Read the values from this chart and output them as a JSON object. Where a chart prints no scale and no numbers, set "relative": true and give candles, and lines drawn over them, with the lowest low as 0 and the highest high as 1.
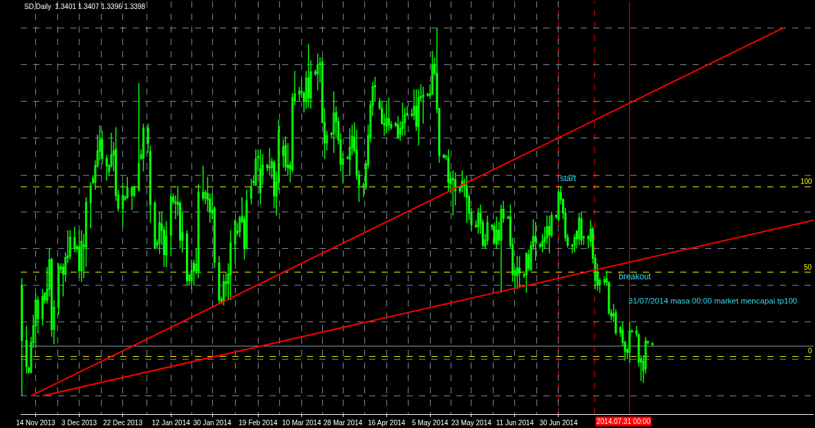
{
  "chart_data": {
    "type": "candlestick",
    "title": "SD,Daily  1.3401 1.3407 1.3396 1.3398",
    "relative": true,
    "grid": true,
    "xlim": [
      "2013-11-07T12:00",
      "2014-10-19T06:00"
    ],
    "xticks": [
      {
        "value": "2013-11-14",
        "label": "14 Nov 2013"
      },
      {
        "value": "2013-12-03",
        "label": "3 Dec 2013"
      },
      {
        "value": "2013-12-22",
        "label": "22 Dec 2013"
      },
      {
        "value": "2014-01-12",
        "label": "12 Jan 2014"
      },
      {
        "value": "2014-01-30",
        "label": "30 Jan 2014"
      },
      {
        "value": "2014-02-19",
        "label": "19 Feb 2014"
      },
      {
        "value": "2014-03-10",
        "label": "10 Mar 2014"
      },
      {
        "value": "2014-03-28",
        "label": "28 Mar 2014"
      },
      {
        "value": "2014-04-16",
        "label": "16 Apr 2014"
      },
      {
        "value": "2014-05-05",
        "label": "5 May 2014"
      },
      {
        "value": "2014-05-23",
        "label": "23 May 2014"
      },
      {
        "value": "2014-06-11",
        "label": "11 Jun 2014"
      },
      {
        "value": "2014-06-30",
        "label": "30 Jun 2014"
      }
    ],
    "series": [
      {
        "color": "#00ff00",
        "x": [
          "2013-11-08",
          "2013-11-10",
          "2013-11-11",
          "2013-11-12",
          "2013-11-13",
          "2013-11-14",
          "2013-11-15",
          "2013-11-17",
          "2013-11-18",
          "2013-11-19",
          "2013-11-20",
          "2013-11-21",
          "2013-11-22",
          "2013-11-24",
          "2013-11-25",
          "2013-11-26",
          "2013-11-27",
          "2013-11-28",
          "2013-11-29",
          "2013-12-01",
          "2013-12-02",
          "2013-12-03",
          "2013-12-04",
          "2013-12-05",
          "2013-12-06",
          "2013-12-08",
          "2013-12-09",
          "2013-12-10",
          "2013-12-11",
          "2013-12-12",
          "2013-12-13",
          "2013-12-15",
          "2013-12-16",
          "2013-12-17",
          "2013-12-18",
          "2013-12-19",
          "2013-12-20",
          "2013-12-22",
          "2013-12-23",
          "2013-12-24",
          "2013-12-26",
          "2013-12-27",
          "2013-12-29",
          "2013-12-30",
          "2013-12-31",
          "2014-01-02",
          "2014-01-03",
          "2014-01-05",
          "2014-01-06",
          "2014-01-07",
          "2014-01-08",
          "2014-01-09",
          "2014-01-10",
          "2014-01-12",
          "2014-01-13",
          "2014-01-14",
          "2014-01-15",
          "2014-01-16",
          "2014-01-17",
          "2014-01-19",
          "2014-01-20",
          "2014-01-21",
          "2014-01-22",
          "2014-01-23",
          "2014-01-24",
          "2014-01-26",
          "2014-01-27",
          "2014-01-28",
          "2014-01-29",
          "2014-01-30",
          "2014-01-31",
          "2014-02-02",
          "2014-02-03",
          "2014-02-04",
          "2014-02-05",
          "2014-02-06",
          "2014-02-07",
          "2014-02-09",
          "2014-02-10",
          "2014-02-11",
          "2014-02-12",
          "2014-02-13",
          "2014-02-14",
          "2014-02-16",
          "2014-02-17",
          "2014-02-18",
          "2014-02-19",
          "2014-02-20",
          "2014-02-21",
          "2014-02-23",
          "2014-02-24",
          "2014-02-25",
          "2014-02-26",
          "2014-02-27",
          "2014-02-28",
          "2014-03-02",
          "2014-03-03",
          "2014-03-04",
          "2014-03-05",
          "2014-03-06",
          "2014-03-07",
          "2014-03-09",
          "2014-03-10",
          "2014-03-11",
          "2014-03-12",
          "2014-03-13",
          "2014-03-14",
          "2014-03-16",
          "2014-03-17",
          "2014-03-18",
          "2014-03-19",
          "2014-03-20",
          "2014-03-21",
          "2014-03-23",
          "2014-03-24",
          "2014-03-25",
          "2014-03-26",
          "2014-03-27",
          "2014-03-28",
          "2014-03-30",
          "2014-03-31",
          "2014-04-01",
          "2014-04-02",
          "2014-04-03",
          "2014-04-04",
          "2014-04-06",
          "2014-04-07",
          "2014-04-08",
          "2014-04-09",
          "2014-04-10",
          "2014-04-11",
          "2014-04-13",
          "2014-04-14",
          "2014-04-15",
          "2014-04-16",
          "2014-04-17",
          "2014-04-18",
          "2014-04-20",
          "2014-04-21",
          "2014-04-22",
          "2014-04-23",
          "2014-04-24",
          "2014-04-25",
          "2014-04-27",
          "2014-04-28",
          "2014-04-29",
          "2014-04-30",
          "2014-05-01",
          "2014-05-02",
          "2014-05-04",
          "2014-05-05",
          "2014-05-06",
          "2014-05-07",
          "2014-05-08",
          "2014-05-09",
          "2014-05-11",
          "2014-05-12",
          "2014-05-13",
          "2014-05-14",
          "2014-05-15",
          "2014-05-16",
          "2014-05-18",
          "2014-05-19",
          "2014-05-20",
          "2014-05-21",
          "2014-05-22",
          "2014-05-23",
          "2014-05-25",
          "2014-05-26",
          "2014-05-27",
          "2014-05-28",
          "2014-05-29",
          "2014-05-30",
          "2014-06-01",
          "2014-06-02",
          "2014-06-03",
          "2014-06-04",
          "2014-06-05",
          "2014-06-06",
          "2014-06-08",
          "2014-06-09",
          "2014-06-10",
          "2014-06-11",
          "2014-06-12",
          "2014-06-13",
          "2014-06-15",
          "2014-06-16",
          "2014-06-17",
          "2014-06-18",
          "2014-06-19",
          "2014-06-20",
          "2014-06-22",
          "2014-06-23",
          "2014-06-24",
          "2014-06-25",
          "2014-06-26",
          "2014-06-27",
          "2014-06-29",
          "2014-06-30",
          "2014-07-01",
          "2014-07-02",
          "2014-07-03",
          "2014-07-04",
          "2014-07-06",
          "2014-07-07",
          "2014-07-08",
          "2014-07-09",
          "2014-07-10",
          "2014-07-11",
          "2014-07-13",
          "2014-07-14",
          "2014-07-15",
          "2014-07-16",
          "2014-07-17",
          "2014-07-18",
          "2014-07-20",
          "2014-07-21",
          "2014-07-22",
          "2014-07-23",
          "2014-07-24",
          "2014-07-25",
          "2014-07-27",
          "2014-07-28",
          "2014-07-29",
          "2014-07-30",
          "2014-07-31",
          "2014-08-01",
          "2014-08-03",
          "2014-08-04",
          "2014-08-05",
          "2014-08-06",
          "2014-08-07",
          "2014-08-08",
          "2014-08-10"
        ],
        "ohlc": [
          [
            0.3,
            0.32,
            0,
            0.15
          ],
          [
            0.15,
            0.19,
            0.06,
            0.08
          ],
          [
            0.065,
            0.08,
            0.06,
            0.075
          ],
          [
            0.065,
            0.16,
            0.06,
            0.145
          ],
          [
            0.145,
            0.22,
            0.13,
            0.19
          ],
          [
            0.19,
            0.28,
            0.13,
            0.26
          ],
          [
            0.26,
            0.27,
            0.17,
            0.21
          ],
          [
            0.21,
            0.29,
            0.19,
            0.27
          ],
          [
            0.28,
            0.28,
            0.25,
            0.26
          ],
          [
            0.26,
            0.35,
            0.25,
            0.29
          ],
          [
            0.29,
            0.4,
            0.27,
            0.37
          ],
          [
            0.37,
            0.375,
            0.16,
            0.18
          ],
          [
            0.18,
            0.26,
            0.14,
            0.24
          ],
          [
            0.24,
            0.36,
            0.22,
            0.35
          ],
          [
            0.345,
            0.36,
            0.34,
            0.35
          ],
          [
            0.35,
            0.36,
            0.27,
            0.33
          ],
          [
            0.33,
            0.39,
            0.31,
            0.375
          ],
          [
            0.375,
            0.45,
            0.36,
            0.38
          ],
          [
            0.38,
            0.45,
            0.37,
            0.43
          ],
          [
            0.43,
            0.46,
            0.39,
            0.4
          ],
          [
            0.4,
            0.41,
            0.39,
            0.405
          ],
          [
            0.405,
            0.45,
            0.32,
            0.34
          ],
          [
            0.34,
            0.45,
            0.31,
            0.42
          ],
          [
            0.41,
            0.44,
            0.32,
            0.405
          ],
          [
            0.405,
            0.54,
            0.35,
            0.525
          ],
          [
            0.525,
            0.58,
            0.455,
            0.57
          ],
          [
            0.58,
            0.6,
            0.575,
            0.59
          ],
          [
            0.58,
            0.64,
            0.56,
            0.625
          ],
          [
            0.625,
            0.71,
            0.62,
            0.665
          ],
          [
            0.665,
            0.735,
            0.64,
            0.695
          ],
          [
            0.695,
            0.72,
            0.63,
            0.645
          ],
          [
            0.645,
            0.655,
            0.585,
            0.625
          ],
          [
            0.61,
            0.63,
            0.6,
            0.625
          ],
          [
            0.625,
            0.715,
            0.62,
            0.655
          ],
          [
            0.655,
            0.69,
            0.61,
            0.665
          ],
          [
            0.67,
            0.73,
            0.53,
            0.545
          ],
          [
            0.545,
            0.56,
            0.5,
            0.51
          ],
          [
            0.51,
            0.58,
            0.46,
            0.545
          ],
          [
            0.535,
            0.545,
            0.53,
            0.54
          ],
          [
            0.54,
            0.595,
            0.535,
            0.565
          ],
          [
            0.565,
            0.57,
            0.505,
            0.545
          ],
          [
            0.545,
            0.57,
            0.54,
            0.565
          ],
          [
            0.56,
            0.85,
            0.555,
            0.63
          ],
          [
            0.645,
            0.67,
            0.64,
            0.655
          ],
          [
            0.647,
            0.74,
            0.61,
            0.727
          ],
          [
            0.727,
            0.74,
            0.66,
            0.687
          ],
          [
            0.663,
            0.68,
            0.47,
            0.52
          ],
          [
            0.523,
            0.53,
            0.4,
            0.4
          ],
          [
            0.41,
            0.425,
            0.4,
            0.415
          ],
          [
            0.415,
            0.5,
            0.385,
            0.47
          ],
          [
            0.467,
            0.5,
            0.41,
            0.45
          ],
          [
            0.45,
            0.46,
            0.35,
            0.383
          ],
          [
            0.383,
            0.475,
            0.35,
            0.433
          ],
          [
            0.437,
            0.55,
            0.38,
            0.54
          ],
          [
            0.54,
            0.55,
            0.52,
            0.528
          ],
          [
            0.528,
            0.545,
            0.48,
            0.523
          ],
          [
            0.525,
            0.57,
            0.49,
            0.52
          ],
          [
            0.523,
            0.53,
            0.4,
            0.423
          ],
          [
            0.443,
            0.5,
            0.39,
            0.423
          ],
          [
            0.44,
            0.45,
            0.3,
            0.313
          ],
          [
            0.313,
            0.33,
            0.3,
            0.328
          ],
          [
            0.313,
            0.37,
            0.29,
            0.34
          ],
          [
            0.36,
            0.37,
            0.3,
            0.34
          ],
          [
            0.34,
            0.4,
            0.33,
            0.357
          ],
          [
            0.34,
            0.575,
            0.32,
            0.553
          ],
          [
            0.553,
            0.625,
            0.53,
            0.537
          ],
          [
            0.537,
            0.56,
            0.52,
            0.553
          ],
          [
            0.55,
            0.595,
            0.5,
            0.533
          ],
          [
            0.535,
            0.55,
            0.47,
            0.5
          ],
          [
            0.505,
            0.55,
            0.48,
            0.497
          ],
          [
            0.51,
            0.515,
            0.347,
            0.363
          ],
          [
            0.36,
            0.38,
            0.25,
            0.26
          ],
          [
            0.253,
            0.27,
            0.25,
            0.262
          ],
          [
            0.26,
            0.33,
            0.245,
            0.31
          ],
          [
            0.305,
            0.335,
            0.27,
            0.31
          ],
          [
            0.305,
            0.36,
            0.26,
            0.33
          ],
          [
            0.33,
            0.45,
            0.26,
            0.415
          ],
          [
            0.413,
            0.48,
            0.36,
            0.475
          ],
          [
            0.447,
            0.47,
            0.435,
            0.443
          ],
          [
            0.447,
            0.49,
            0.43,
            0.483
          ],
          [
            0.487,
            0.54,
            0.47,
            0.473
          ],
          [
            0.48,
            0.49,
            0.37,
            0.4
          ],
          [
            0.4,
            0.56,
            0.4,
            0.53
          ],
          [
            0.537,
            0.59,
            0.52,
            0.567
          ],
          [
            0.58,
            0.6,
            0.57,
            0.583
          ],
          [
            0.573,
            0.67,
            0.57,
            0.643
          ],
          [
            0.647,
            0.67,
            0.61,
            0.65
          ],
          [
            0.617,
            0.67,
            0.52,
            0.553
          ],
          [
            0.6,
            0.657,
            0.573,
            0.627
          ],
          [
            0.62,
            0.63,
            0.61,
            0.627
          ],
          [
            0.623,
            0.673,
            0.6,
            0.62
          ],
          [
            0.62,
            0.647,
            0.59,
            0.637
          ],
          [
            0.633,
            0.64,
            0.51,
            0.543
          ],
          [
            0.543,
            0.61,
            0.49,
            0.58
          ],
          [
            0.58,
            0.75,
            0.56,
            0.72
          ],
          [
            0.677,
            0.697,
            0.62,
            0.653
          ],
          [
            0.68,
            0.705,
            0.61,
            0.623
          ],
          [
            0.62,
            0.687,
            0.6,
            0.627
          ],
          [
            0.627,
            0.637,
            0.58,
            0.617
          ],
          [
            0.615,
            0.823,
            0.607,
            0.81
          ],
          [
            0.803,
            0.883,
            0.79,
            0.82
          ],
          [
            0.82,
            0.84,
            0.8,
            0.828
          ],
          [
            0.827,
            0.86,
            0.81,
            0.825
          ],
          [
            0.823,
            0.827,
            0.77,
            0.8
          ],
          [
            0.8,
            0.883,
            0.78,
            0.863
          ],
          [
            0.865,
            0.957,
            0.783,
            0.81
          ],
          [
            0.81,
            0.912,
            0.78,
            0.88
          ],
          [
            0.88,
            0.887,
            0.87,
            0.875
          ],
          [
            0.875,
            0.93,
            0.83,
            0.9
          ],
          [
            0.9,
            0.92,
            0.85,
            0.903
          ],
          [
            0.907,
            0.92,
            0.74,
            0.743
          ],
          [
            0.743,
            0.783,
            0.643,
            0.687
          ],
          [
            0.687,
            0.72,
            0.667,
            0.707
          ],
          [
            0.713,
            0.717,
            0.7,
            0.71
          ],
          [
            0.713,
            0.827,
            0.66,
            0.768
          ],
          [
            0.77,
            0.787,
            0.703,
            0.745
          ],
          [
            0.745,
            0.757,
            0.683,
            0.695
          ],
          [
            0.695,
            0.713,
            0.61,
            0.63
          ],
          [
            0.63,
            0.66,
            0.577,
            0.643
          ],
          [
            0.646,
            0.653,
            0.643,
            0.647
          ],
          [
            0.643,
            0.727,
            0.6,
            0.675
          ],
          [
            0.675,
            0.737,
            0.655,
            0.705
          ],
          [
            0.703,
            0.743,
            0.66,
            0.667
          ],
          [
            0.667,
            0.723,
            0.587,
            0.6
          ],
          [
            0.6,
            0.613,
            0.527,
            0.573
          ],
          [
            0.573,
            0.58,
            0.54,
            0.567
          ],
          [
            0.567,
            0.64,
            0.56,
            0.63
          ],
          [
            0.627,
            0.737,
            0.617,
            0.707
          ],
          [
            0.705,
            0.8,
            0.69,
            0.79
          ],
          [
            0.79,
            0.853,
            0.76,
            0.84
          ],
          [
            0.84,
            0.867,
            0.8,
            0.843
          ],
          [
            0.8,
            0.81,
            0.777,
            0.783
          ],
          [
            0.78,
            0.803,
            0.74,
            0.74
          ],
          [
            0.74,
            0.767,
            0.707,
            0.737
          ],
          [
            0.733,
            0.793,
            0.713,
            0.753
          ],
          [
            0.753,
            0.81,
            0.72,
            0.737
          ],
          [
            0.737,
            0.747,
            0.723,
            0.73
          ],
          [
            0.735,
            0.745,
            0.73,
            0.74
          ],
          [
            0.737,
            0.76,
            0.697,
            0.703
          ],
          [
            0.71,
            0.747,
            0.693,
            0.727
          ],
          [
            0.727,
            0.797,
            0.707,
            0.743
          ],
          [
            0.743,
            0.783,
            0.707,
            0.763
          ],
          [
            0.765,
            0.787,
            0.76,
            0.767
          ],
          [
            0.763,
            0.78,
            0.757,
            0.765
          ],
          [
            0.763,
            0.833,
            0.75,
            0.787
          ],
          [
            0.787,
            0.833,
            0.72,
            0.733
          ],
          [
            0.733,
            0.833,
            0.68,
            0.81
          ],
          [
            0.81,
            0.847,
            0.8,
            0.813
          ],
          [
            0.813,
            0.84,
            0.74,
            0.817
          ],
          [
            0.817,
            0.823,
            0.813,
            0.82
          ],
          [
            0.817,
            0.847,
            0.807,
            0.82
          ],
          [
            0.82,
            0.937,
            0.82,
            0.9
          ],
          [
            0.9,
            0.92,
            0.87,
            0.877
          ],
          [
            0.877,
            1.0,
            0.767,
            0.78
          ],
          [
            0.78,
            0.783,
            0.633,
            0.653
          ],
          [
            0.655,
            0.655,
            0.645,
            0.648
          ],
          [
            0.65,
            0.653,
            0.64,
            0.652
          ],
          [
            0.647,
            0.67,
            0.553,
            0.58
          ],
          [
            0.59,
            0.61,
            0.553,
            0.577
          ],
          [
            0.59,
            0.613,
            0.49,
            0.587
          ],
          [
            0.587,
            0.607,
            0.517,
            0.557
          ],
          [
            0.567,
            0.57,
            0.55,
            0.557
          ],
          [
            0.567,
            0.613,
            0.553,
            0.583
          ],
          [
            0.58,
            0.59,
            0.54,
            0.57
          ],
          [
            0.57,
            0.6,
            0.47,
            0.54
          ],
          [
            0.54,
            0.547,
            0.477,
            0.497
          ],
          [
            0.497,
            0.51,
            0.447,
            0.465
          ],
          [
            0.463,
            0.477,
            0.457,
            0.46
          ],
          [
            0.46,
            0.51,
            0.44,
            0.497
          ],
          [
            0.497,
            0.52,
            0.44,
            0.47
          ],
          [
            0.47,
            0.48,
            0.403,
            0.41
          ],
          [
            0.407,
            0.44,
            0.4,
            0.423
          ],
          [
            0.423,
            0.49,
            0.41,
            0.47
          ],
          [
            0.463,
            0.467,
            0.45,
            0.46
          ],
          [
            0.46,
            0.47,
            0.41,
            0.417
          ],
          [
            0.413,
            0.487,
            0.4,
            0.45
          ],
          [
            0.45,
            0.473,
            0.41,
            0.423
          ],
          [
            0.423,
            0.52,
            0.28,
            0.507
          ],
          [
            0.507,
            0.53,
            0.47,
            0.483
          ],
          [
            0.485,
            0.49,
            0.48,
            0.483
          ],
          [
            0.487,
            0.52,
            0.4,
            0.41
          ],
          [
            0.41,
            0.43,
            0.31,
            0.33
          ],
          [
            0.327,
            0.35,
            0.293,
            0.34
          ],
          [
            0.327,
            0.38,
            0.29,
            0.347
          ],
          [
            0.347,
            0.38,
            0.293,
            0.333
          ],
          [
            0.33,
            0.333,
            0.32,
            0.327
          ],
          [
            0.33,
            0.39,
            0.28,
            0.387
          ],
          [
            0.383,
            0.397,
            0.34,
            0.347
          ],
          [
            0.343,
            0.42,
            0.34,
            0.407
          ],
          [
            0.407,
            0.48,
            0.397,
            0.433
          ],
          [
            0.433,
            0.473,
            0.367,
            0.42
          ],
          [
            0.407,
            0.417,
            0.4,
            0.41
          ],
          [
            0.407,
            0.44,
            0.39,
            0.42
          ],
          [
            0.42,
            0.46,
            0.4,
            0.43
          ],
          [
            0.43,
            0.49,
            0.413,
            0.46
          ],
          [
            0.46,
            0.49,
            0.387,
            0.437
          ],
          [
            0.437,
            0.5,
            0.43,
            0.49
          ],
          [
            0.487,
            0.493,
            0.48,
            0.49
          ],
          [
            0.48,
            0.56,
            0.473,
            0.553
          ],
          [
            0.553,
            0.57,
            0.52,
            0.533
          ],
          [
            0.533,
            0.537,
            0.48,
            0.497
          ],
          [
            0.497,
            0.51,
            0.42,
            0.43
          ],
          [
            0.43,
            0.44,
            0.403,
            0.41
          ],
          [
            0.407,
            0.413,
            0.387,
            0.41
          ],
          [
            0.41,
            0.44,
            0.39,
            0.43
          ],
          [
            0.447,
            0.45,
            0.4,
            0.427
          ],
          [
            0.427,
            0.497,
            0.41,
            0.483
          ],
          [
            0.48,
            0.5,
            0.41,
            0.423
          ],
          [
            0.43,
            0.435,
            0.41,
            0.432
          ],
          [
            0.432,
            0.437,
            0.4,
            0.427
          ],
          [
            0.421,
            0.477,
            0.405,
            0.453
          ],
          [
            0.453,
            0.46,
            0.36,
            0.374
          ],
          [
            0.374,
            0.385,
            0.29,
            0.314
          ],
          [
            0.334,
            0.36,
            0.285,
            0.302
          ],
          [
            0.302,
            0.32,
            0.28,
            0.313
          ],
          [
            0.31,
            0.325,
            0.3,
            0.315
          ],
          [
            0.308,
            0.34,
            0.3,
            0.318
          ],
          [
            0.309,
            0.31,
            0.22,
            0.225
          ],
          [
            0.225,
            0.235,
            0.205,
            0.216
          ],
          [
            0.218,
            0.25,
            0.2,
            0.222
          ],
          [
            0.225,
            0.236,
            0.165,
            0.172
          ],
          [
            0.172,
            0.19,
            0.16,
            0.185
          ],
          [
            0.178,
            0.2,
            0.135,
            0.145
          ],
          [
            0.145,
            0.15,
            0.095,
            0.121
          ],
          [
            0.125,
            0.13,
            0.1,
            0.118
          ],
          [
            0.118,
            0.2,
            0.09,
            0.176
          ],
          [
            0.176,
            0.18,
            0.172,
            0.174
          ],
          [
            0.17,
            0.19,
            0.16,
            0.176
          ],
          [
            0.165,
            0.17,
            0.08,
            0.092
          ],
          [
            0.1,
            0.11,
            0.04,
            0.092
          ],
          [
            0.069,
            0.11,
            0.035,
            0.094
          ],
          [
            0.074,
            0.16,
            0.06,
            0.149
          ],
          [
            0.147,
            0.15,
            0.14,
            0.145
          ],
          [
            0.142,
            0.145,
            0.135,
            0.14
          ]
        ]
      },
      {
        "type": "line",
        "color": "#ff0000",
        "x": [
          "2013-11-12",
          "2014-10-06"
        ],
        "values": [
          0,
          1
        ]
      },
      {
        "type": "line",
        "color": "#ff0000",
        "x": [
          "2013-11-17",
          "2014-10-19T06:00"
        ],
        "values": [
          0,
          0.477
        ]
      }
    ],
    "ref_lines": [
      {
        "axis": "x",
        "value": "2014-06-30",
        "color": "#ff0000",
        "line_style": "dashed"
      },
      {
        "axis": "x",
        "value": "2014-07-15T18:00",
        "color": "#ff0000",
        "line_style": "dashed"
      },
      {
        "axis": "x",
        "value": "2014-07-31",
        "color": "#ff0000",
        "line_style": "solid"
      },
      {
        "axis": "y",
        "value": 0.568,
        "color": "#ffff00",
        "line_style": "dashed"
      },
      {
        "axis": "y",
        "value": 0.336,
        "color": "#ffff00",
        "line_style": "dashed"
      },
      {
        "axis": "y",
        "value": 0.107,
        "color": "#ffff00",
        "line_style": "dashed"
      },
      {
        "axis": "y",
        "value": 0.135,
        "color": "#8c9aa8",
        "line_style": "solid"
      }
    ],
    "annotations": [
      "start",
      "breakout",
      "31/07/2014 masa 00:00 market mencapai tp100",
      "2014.07.31 00:00",
      "100",
      "50",
      "0"
    ]
  }
}
